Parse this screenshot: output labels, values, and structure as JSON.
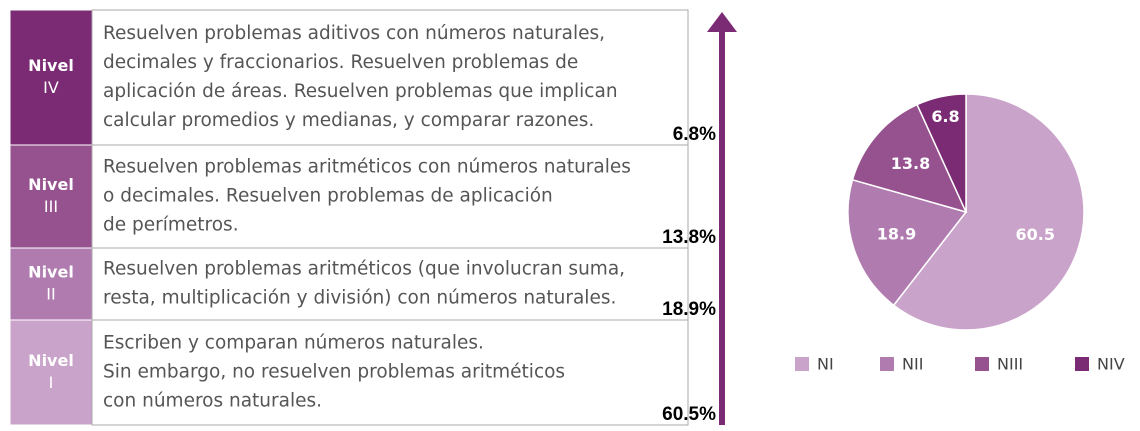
{
  "levels": [
    {
      "label": "Nivel",
      "roman": "IV",
      "color": "#7b2a74",
      "percent": "6.8%",
      "lines": [
        "Resuelven problemas aditivos con números naturales,",
        "decimales y fraccionarios. Resuelven problemas de",
        "aplicación de áreas. Resuelven problemas que implican",
        "calcular promedios y medianas, y comparar razones."
      ]
    },
    {
      "label": "Nivel",
      "roman": "III",
      "color": "#96528f",
      "percent": "13.8%",
      "lines": [
        "Resuelven problemas aritméticos con números naturales",
        "o decimales. Resuelven problemas de aplicación",
        "de perímetros."
      ]
    },
    {
      "label": "Nivel",
      "roman": "II",
      "color": "#b07cb0",
      "percent": "18.9%",
      "lines": [
        "Resuelven problemas aritméticos (que involucran suma,",
        "resta, multiplicación y división) con números naturales."
      ]
    },
    {
      "label": "Nivel",
      "roman": "I",
      "color": "#c9a3c9",
      "percent": "60.5%",
      "lines": [
        "Escriben y comparan números naturales.",
        "Sin embargo, no resuelven problemas aritméticos",
        "con números naturales."
      ]
    }
  ],
  "chart_data": {
    "type": "pie",
    "categories": [
      "NI",
      "NII",
      "NIII",
      "NIV"
    ],
    "values": [
      60.5,
      18.9,
      13.8,
      6.8
    ],
    "colors": [
      "#c9a3c9",
      "#b07cb0",
      "#96528f",
      "#7b2a74"
    ]
  }
}
